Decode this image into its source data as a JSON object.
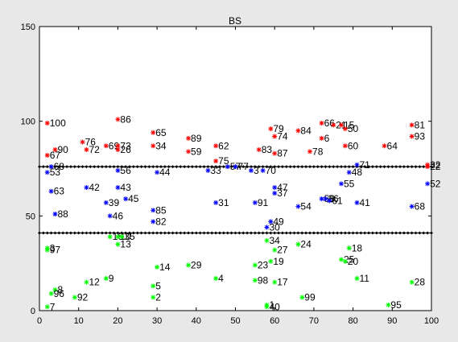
{
  "chart_data": {
    "type": "scatter",
    "title": "BS",
    "xlim": [
      0,
      100
    ],
    "ylim": [
      0,
      150
    ],
    "xticks": [
      0,
      10,
      20,
      30,
      40,
      50,
      60,
      70,
      80,
      90,
      100
    ],
    "yticks": [
      0,
      50,
      100,
      150
    ],
    "grid": false,
    "colors": {
      "high": "#ff0000",
      "mid": "#0000ff",
      "low": "#00ff00",
      "threshold": "#000000"
    },
    "thresholds": [
      {
        "y": 76,
        "x": [
          0,
          100
        ]
      },
      {
        "y": 41,
        "x": [
          0,
          100
        ]
      }
    ],
    "series": [
      {
        "group": "high",
        "points": [
          {
            "label": "100",
            "x": 2,
            "y": 99
          },
          {
            "label": "86",
            "x": 20,
            "y": 101
          },
          {
            "label": "76",
            "x": 11,
            "y": 89
          },
          {
            "label": "69",
            "x": 17,
            "y": 87
          },
          {
            "label": "73",
            "x": 20,
            "y": 87
          },
          {
            "label": "72",
            "x": 12,
            "y": 85
          },
          {
            "label": "26",
            "x": 20,
            "y": 85
          },
          {
            "label": "90",
            "x": 4,
            "y": 85
          },
          {
            "label": "67",
            "x": 2,
            "y": 82
          },
          {
            "label": "65",
            "x": 29,
            "y": 94
          },
          {
            "label": "34",
            "x": 29,
            "y": 87
          },
          {
            "label": "89",
            "x": 38,
            "y": 91
          },
          {
            "label": "59",
            "x": 38,
            "y": 84
          },
          {
            "label": "62",
            "x": 45,
            "y": 87
          },
          {
            "label": "75",
            "x": 45,
            "y": 79
          },
          {
            "label": "79",
            "x": 59,
            "y": 96
          },
          {
            "label": "74",
            "x": 60,
            "y": 92
          },
          {
            "label": "83",
            "x": 56,
            "y": 85
          },
          {
            "label": "87",
            "x": 60,
            "y": 83
          },
          {
            "label": "84",
            "x": 66,
            "y": 95
          },
          {
            "label": "66",
            "x": 72,
            "y": 99
          },
          {
            "label": "21",
            "x": 75,
            "y": 98
          },
          {
            "label": "15",
            "x": 77,
            "y": 98
          },
          {
            "label": "50",
            "x": 78,
            "y": 96
          },
          {
            "label": "6",
            "x": 72,
            "y": 91
          },
          {
            "label": "78",
            "x": 69,
            "y": 84
          },
          {
            "label": "60",
            "x": 78,
            "y": 87
          },
          {
            "label": "64",
            "x": 88,
            "y": 87
          },
          {
            "label": "81",
            "x": 95,
            "y": 98
          },
          {
            "label": "93",
            "x": 95,
            "y": 92
          },
          {
            "label": "32",
            "x": 99,
            "y": 77
          },
          {
            "label": "22",
            "x": 99,
            "y": 76
          }
        ]
      },
      {
        "group": "mid",
        "points": [
          {
            "label": "68",
            "x": 3,
            "y": 76
          },
          {
            "label": "53",
            "x": 2,
            "y": 73
          },
          {
            "label": "63",
            "x": 3,
            "y": 63
          },
          {
            "label": "88",
            "x": 4,
            "y": 51
          },
          {
            "label": "42",
            "x": 12,
            "y": 65
          },
          {
            "label": "39",
            "x": 17,
            "y": 57
          },
          {
            "label": "46",
            "x": 18,
            "y": 50
          },
          {
            "label": "43",
            "x": 20,
            "y": 65
          },
          {
            "label": "45",
            "x": 22,
            "y": 59
          },
          {
            "label": "56",
            "x": 20,
            "y": 74
          },
          {
            "label": "44",
            "x": 30,
            "y": 73
          },
          {
            "label": "85",
            "x": 29,
            "y": 53
          },
          {
            "label": "82",
            "x": 29,
            "y": 47
          },
          {
            "label": "33",
            "x": 43,
            "y": 74
          },
          {
            "label": "57",
            "x": 48,
            "y": 76
          },
          {
            "label": "77",
            "x": 50,
            "y": 76
          },
          {
            "label": "3",
            "x": 54,
            "y": 74
          },
          {
            "label": "70",
            "x": 57,
            "y": 74
          },
          {
            "label": "31",
            "x": 45,
            "y": 57
          },
          {
            "label": "91",
            "x": 55,
            "y": 57
          },
          {
            "label": "47",
            "x": 60,
            "y": 65
          },
          {
            "label": "37",
            "x": 60,
            "y": 62
          },
          {
            "label": "54",
            "x": 66,
            "y": 55
          },
          {
            "label": "58",
            "x": 72,
            "y": 59
          },
          {
            "label": "86",
            "x": 73,
            "y": 59
          },
          {
            "label": "61",
            "x": 74,
            "y": 58
          },
          {
            "label": "55",
            "x": 77,
            "y": 67
          },
          {
            "label": "48",
            "x": 79,
            "y": 73
          },
          {
            "label": "71",
            "x": 81,
            "y": 77
          },
          {
            "label": "41",
            "x": 81,
            "y": 57
          },
          {
            "label": "68",
            "x": 95,
            "y": 55
          },
          {
            "label": "52",
            "x": 99,
            "y": 67
          },
          {
            "label": "49",
            "x": 59,
            "y": 47
          },
          {
            "label": "30",
            "x": 58,
            "y": 44
          }
        ]
      },
      {
        "group": "low",
        "points": [
          {
            "label": "3",
            "x": 2,
            "y": 33
          },
          {
            "label": "97",
            "x": 2,
            "y": 32
          },
          {
            "label": "8",
            "x": 4,
            "y": 11
          },
          {
            "label": "96",
            "x": 3,
            "y": 9
          },
          {
            "label": "92",
            "x": 9,
            "y": 7
          },
          {
            "label": "7",
            "x": 2,
            "y": 2
          },
          {
            "label": "12",
            "x": 12,
            "y": 15
          },
          {
            "label": "9",
            "x": 17,
            "y": 17
          },
          {
            "label": "16",
            "x": 18,
            "y": 39
          },
          {
            "label": "10",
            "x": 20,
            "y": 39
          },
          {
            "label": "35",
            "x": 21,
            "y": 39
          },
          {
            "label": "13",
            "x": 20,
            "y": 35
          },
          {
            "label": "14",
            "x": 30,
            "y": 23
          },
          {
            "label": "5",
            "x": 29,
            "y": 13
          },
          {
            "label": "2",
            "x": 29,
            "y": 7
          },
          {
            "label": "29",
            "x": 38,
            "y": 24
          },
          {
            "label": "4",
            "x": 45,
            "y": 17
          },
          {
            "label": "34",
            "x": 58,
            "y": 37
          },
          {
            "label": "27",
            "x": 60,
            "y": 32
          },
          {
            "label": "19",
            "x": 59,
            "y": 26
          },
          {
            "label": "23",
            "x": 55,
            "y": 24
          },
          {
            "label": "98",
            "x": 55,
            "y": 16
          },
          {
            "label": "17",
            "x": 60,
            "y": 15
          },
          {
            "label": "24",
            "x": 66,
            "y": 35
          },
          {
            "label": "99",
            "x": 67,
            "y": 7
          },
          {
            "label": "18",
            "x": 79,
            "y": 33
          },
          {
            "label": "25",
            "x": 77,
            "y": 27
          },
          {
            "label": "20",
            "x": 78,
            "y": 26
          },
          {
            "label": "11",
            "x": 81,
            "y": 17
          },
          {
            "label": "95",
            "x": 89,
            "y": 3
          },
          {
            "label": "28",
            "x": 95,
            "y": 15
          },
          {
            "label": "1",
            "x": 58,
            "y": 3
          },
          {
            "label": "40",
            "x": 58,
            "y": 2
          }
        ]
      }
    ]
  }
}
